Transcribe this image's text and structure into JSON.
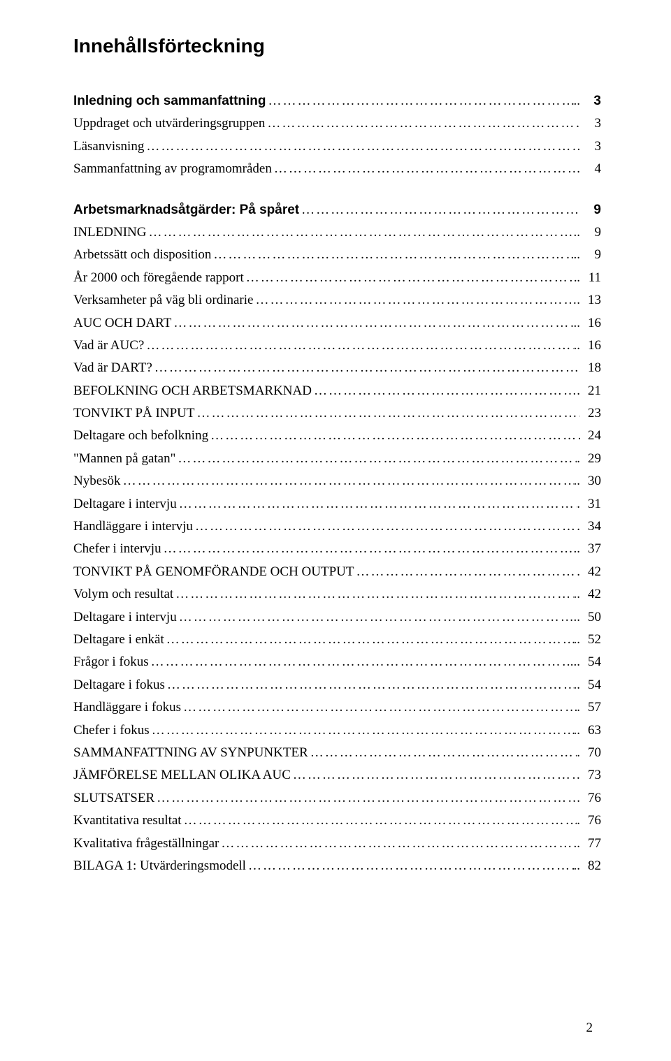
{
  "title": "Innehållsförteckning",
  "footer_page": "2",
  "leader_dots": "……………………………………………………………………………………………………………………………………",
  "items": [
    {
      "label": "Inledning och sammanfattning",
      "suffix": "..",
      "page": "3",
      "bold": true,
      "gap": false
    },
    {
      "label": "Uppdraget och utvärderingsgruppen",
      "suffix": "",
      "page": "3",
      "bold": false,
      "gap": false
    },
    {
      "label": "Läsanvisning",
      "suffix": "",
      "page": "3",
      "bold": false,
      "gap": false
    },
    {
      "label": "Sammanfattning av programområden",
      "suffix": ".",
      "page": "4",
      "bold": false,
      "gap": false
    },
    {
      "label": "Arbetsmarknadsåtgärder: På spåret",
      "suffix": "",
      "page": "9",
      "bold": true,
      "gap": true
    },
    {
      "label": "INLEDNING",
      "suffix": "..",
      "page": "9",
      "bold": false,
      "gap": false
    },
    {
      "label": "Arbetssätt och disposition",
      "suffix": "..",
      "page": "9",
      "bold": false,
      "gap": false
    },
    {
      "label": "År 2000 och föregående rapport",
      "suffix": ".",
      "page": "11",
      "bold": false,
      "gap": false
    },
    {
      "label": "Verksamheter på väg bli ordinarie",
      "suffix": ".",
      "page": "13",
      "bold": false,
      "gap": false
    },
    {
      "label": "AUC OCH DART",
      "suffix": "..",
      "page": "16",
      "bold": false,
      "gap": false
    },
    {
      "label": "Vad är AUC?",
      "suffix": "..",
      "page": "16",
      "bold": false,
      "gap": false
    },
    {
      "label": "Vad är DART?",
      "suffix": "",
      "page": "18",
      "bold": false,
      "gap": false
    },
    {
      "label": "BEFOLKNING OCH ARBETSMARKNAD",
      "suffix": ".",
      "page": "21",
      "bold": false,
      "gap": false
    },
    {
      "label": "TONVIKT PÅ INPUT",
      "suffix": "",
      "page": "23",
      "bold": false,
      "gap": false
    },
    {
      "label": "Deltagare och befolkning",
      "suffix": "",
      "page": "24",
      "bold": false,
      "gap": false
    },
    {
      "label": "\"Mannen på gatan\"",
      "suffix": ".",
      "page": "29",
      "bold": false,
      "gap": false
    },
    {
      "label": "Nybesök",
      "suffix": "..",
      "page": "30",
      "bold": false,
      "gap": false
    },
    {
      "label": "Deltagare i intervju",
      "suffix": ".",
      "page": "31",
      "bold": false,
      "gap": false
    },
    {
      "label": "Handläggare i intervju",
      "suffix": ".",
      "page": "34",
      "bold": false,
      "gap": false
    },
    {
      "label": "Chefer i intervju",
      "suffix": "..",
      "page": "37",
      "bold": false,
      "gap": false
    },
    {
      "label": "TONVIKT PÅ GENOMFÖRANDE OCH OUTPUT",
      "suffix": "",
      "page": "42",
      "bold": false,
      "gap": false
    },
    {
      "label": "Volym och resultat",
      "suffix": "..",
      "page": "42",
      "bold": false,
      "gap": false
    },
    {
      "label": "Deltagare i intervju",
      "suffix": "..",
      "page": "50",
      "bold": false,
      "gap": false
    },
    {
      "label": "Deltagare i enkät",
      "suffix": "..",
      "page": "52",
      "bold": false,
      "gap": false
    },
    {
      "label": "Frågor i fokus",
      "suffix": "...",
      "page": "54",
      "bold": false,
      "gap": false
    },
    {
      "label": "Deltagare i fokus",
      "suffix": "..",
      "page": "54",
      "bold": false,
      "gap": false
    },
    {
      "label": "Handläggare i fokus",
      "suffix": ".",
      "page": "57",
      "bold": false,
      "gap": false
    },
    {
      "label": "Chefer i fokus",
      "suffix": "..",
      "page": "63",
      "bold": false,
      "gap": false
    },
    {
      "label": "SAMMANFATTNING AV SYNPUNKTER",
      "suffix": ".",
      "page": "70",
      "bold": false,
      "gap": false
    },
    {
      "label": "JÄMFÖRELSE MELLAN OLIKA AUC",
      "suffix": "",
      "page": "73",
      "bold": false,
      "gap": false
    },
    {
      "label": "SLUTSATSER",
      "suffix": ".",
      "page": "76",
      "bold": false,
      "gap": false
    },
    {
      "label": "Kvantitativa resultat",
      "suffix": ".",
      "page": "76",
      "bold": false,
      "gap": false
    },
    {
      "label": "Kvalitativa frågeställningar",
      "suffix": "..",
      "page": "77",
      "bold": false,
      "gap": false
    },
    {
      "label": "BILAGA 1: Utvärderingsmodell",
      "suffix": "..",
      "page": "82",
      "bold": false,
      "gap": false
    }
  ]
}
